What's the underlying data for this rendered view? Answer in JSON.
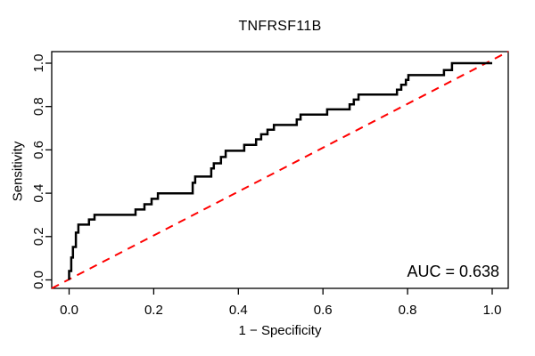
{
  "figure": {
    "title": "TNFRSF11B"
  },
  "axes": {
    "xlabel": "1 − Specificity",
    "ylabel": "Sensitivity",
    "x_tick_labels": [
      "0.0",
      "0.2",
      "0.4",
      "0.6",
      "0.8",
      "1.0"
    ],
    "x_tick_values": [
      0,
      0.2,
      0.4,
      0.6,
      0.8,
      1
    ],
    "y_tick_labels": [
      "0.0",
      "0.2",
      "0.4",
      "0.6",
      "0.8",
      "1.0"
    ],
    "y_tick_values": [
      0,
      0.2,
      0.4,
      0.6,
      0.8,
      1
    ],
    "xlim": [
      0,
      1
    ],
    "ylim": [
      0,
      1
    ]
  },
  "annotation": {
    "auc_label": "AUC = 0.638",
    "auc_value": 0.638
  },
  "colors": {
    "curve": "#000000",
    "diagonal": "#FF0000",
    "frame": "#000000",
    "text": "#000000",
    "background": "#FFFFFF"
  },
  "chart_data": {
    "type": "line",
    "subtype": "roc-curve",
    "title": "TNFRSF11B",
    "xlabel": "1 − Specificity",
    "ylabel": "Sensitivity",
    "xlim": [
      0,
      1
    ],
    "ylim": [
      0,
      1
    ],
    "grid": false,
    "legend": "none",
    "auc": 0.638,
    "series": [
      {
        "name": "ROC curve",
        "style": "step",
        "color": "#000000",
        "line_width": 2.5,
        "points": [
          [
            0,
            0
          ],
          [
            0,
            0.041
          ],
          [
            0.005,
            0.103
          ],
          [
            0.009,
            0.152
          ],
          [
            0.016,
            0.218
          ],
          [
            0.022,
            0.255
          ],
          [
            0.047,
            0.279
          ],
          [
            0.06,
            0.3
          ],
          [
            0.157,
            0.325
          ],
          [
            0.178,
            0.349
          ],
          [
            0.195,
            0.374
          ],
          [
            0.21,
            0.399
          ],
          [
            0.292,
            0.448
          ],
          [
            0.298,
            0.477
          ],
          [
            0.336,
            0.514
          ],
          [
            0.342,
            0.538
          ],
          [
            0.359,
            0.567
          ],
          [
            0.37,
            0.596
          ],
          [
            0.414,
            0.623
          ],
          [
            0.442,
            0.649
          ],
          [
            0.454,
            0.672
          ],
          [
            0.469,
            0.693
          ],
          [
            0.484,
            0.715
          ],
          [
            0.538,
            0.74
          ],
          [
            0.547,
            0.763
          ],
          [
            0.61,
            0.787
          ],
          [
            0.663,
            0.81
          ],
          [
            0.673,
            0.832
          ],
          [
            0.684,
            0.855
          ],
          [
            0.775,
            0.878
          ],
          [
            0.785,
            0.9
          ],
          [
            0.796,
            0.923
          ],
          [
            0.802,
            0.945
          ],
          [
            0.886,
            0.968
          ],
          [
            0.905,
            1
          ],
          [
            1,
            1
          ]
        ]
      },
      {
        "name": "chance diagonal",
        "style": "dashed",
        "color": "#FF0000",
        "line_width": 2,
        "points": [
          [
            0,
            0
          ],
          [
            1,
            1
          ]
        ]
      }
    ]
  }
}
